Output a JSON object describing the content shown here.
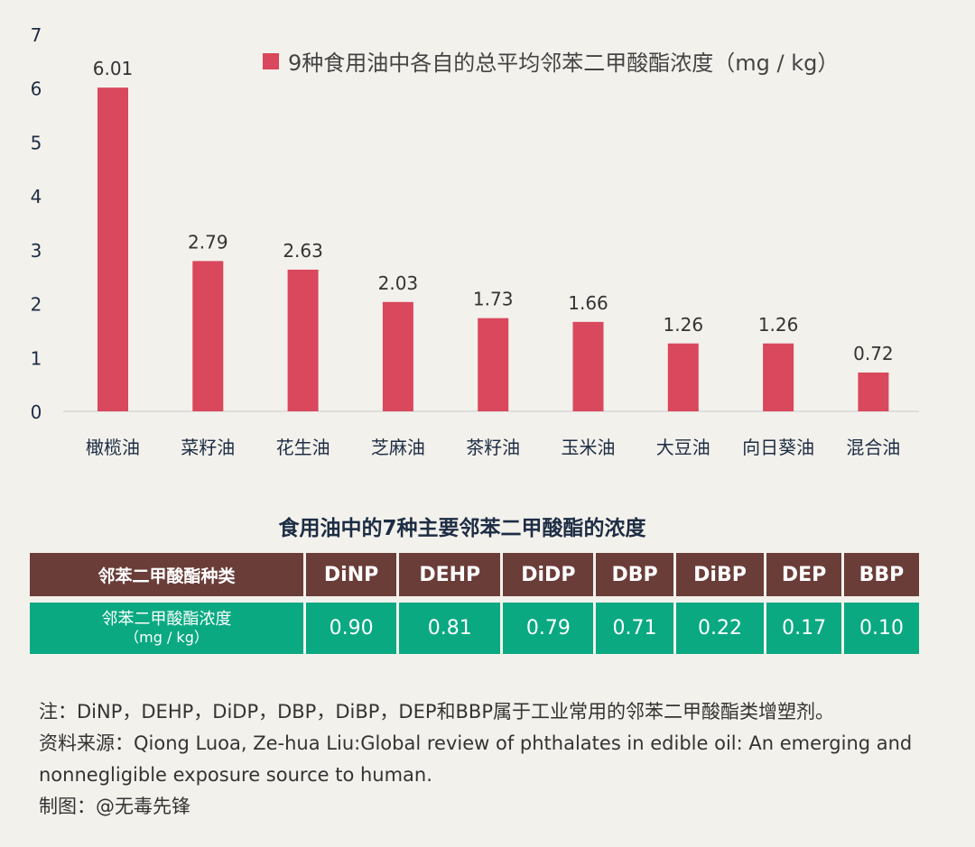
{
  "chart_data": {
    "type": "bar",
    "categories": [
      "橄榄油",
      "菜籽油",
      "花生油",
      "芝麻油",
      "茶籽油",
      "玉米油",
      "大豆油",
      "向日葵油",
      "混合油"
    ],
    "series": [
      {
        "name": "9种食用油中各自的总平均邻苯二甲酸酯浓度（mg / kg）",
        "values": [
          6.01,
          2.79,
          2.63,
          2.03,
          1.73,
          1.66,
          1.26,
          1.26,
          0.72
        ]
      }
    ],
    "data_labels": [
      "6.01",
      "2.79",
      "2.63",
      "2.03",
      "1.73",
      "1.66",
      "1.26",
      "1.26",
      "0.72"
    ],
    "yticks": [
      "0",
      "1",
      "2",
      "3",
      "4",
      "5",
      "6",
      "7"
    ],
    "ylim": [
      0,
      7
    ],
    "grid": false,
    "legend_position": "top-right",
    "bar_color": "#d9485c"
  },
  "table": {
    "title": "食用油中的7种主要邻苯二甲酸酯的浓度",
    "header_label": "邻苯二甲酸酯种类",
    "row_label": "邻苯二甲酸酯浓度",
    "row_unit": "（mg / kg）",
    "columns": [
      "DiNP",
      "DEHP",
      "DiDP",
      "DBP",
      "DiBP",
      "DEP",
      "BBP"
    ],
    "values": [
      "0.90",
      "0.81",
      "0.79",
      "0.71",
      "0.22",
      "0.17",
      "0.10"
    ],
    "header_color": "#6a3d39",
    "row_color": "#0aa982"
  },
  "notes": [
    "注：DiNP，DEHP，DiDP，DBP，DiBP，DEP和BBP属于工业常用的邻苯二甲酸酯类增塑剂。",
    "资料来源：Qiong Luoa, Ze-hua Liu:Global review of phthalates in edible oil: An emerging and nonnegligible exposure source to human.",
    "制图：@无毒先锋"
  ]
}
